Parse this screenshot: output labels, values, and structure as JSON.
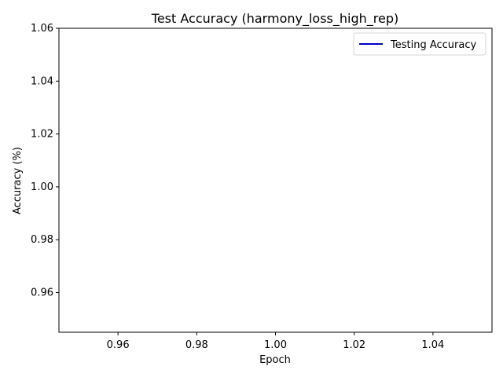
{
  "chart_data": {
    "type": "line",
    "title": "Test Accuracy (harmony_loss_high_rep)",
    "xlabel": "Epoch",
    "ylabel": "Accuracy (%)",
    "xlim": [
      0.945,
      1.055
    ],
    "ylim": [
      0.945,
      1.06
    ],
    "xticks": [
      0.96,
      0.98,
      1.0,
      1.02,
      1.04
    ],
    "yticks": [
      0.96,
      0.98,
      1.0,
      1.02,
      1.04,
      1.06
    ],
    "xtick_labels": [
      "0.96",
      "0.98",
      "1.00",
      "1.02",
      "1.04"
    ],
    "ytick_labels": [
      "0.96",
      "0.98",
      "1.00",
      "1.02",
      "1.04",
      "1.06"
    ],
    "grid": false,
    "legend_position": "top-right",
    "series": [
      {
        "name": "Testing Accuracy",
        "color": "#0000cc",
        "x": [],
        "y": []
      }
    ]
  }
}
